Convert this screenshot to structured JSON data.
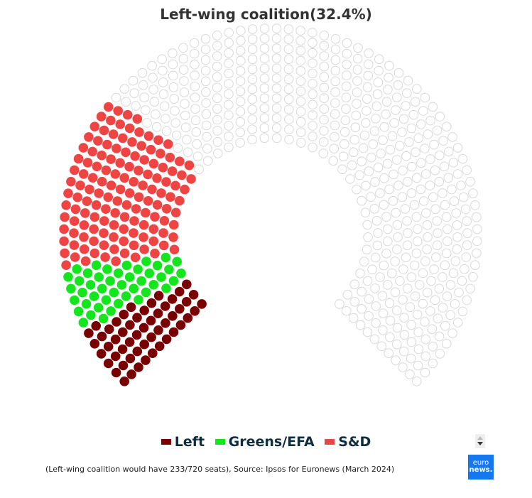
{
  "title": "Left-wing coalition(32.4%)",
  "chart_data": {
    "type": "parliament",
    "title": "Left-wing coalition(32.4%)",
    "total_seats": 720,
    "series": [
      {
        "name": "Left",
        "seats": 53,
        "color": "#780000"
      },
      {
        "name": "Greens/EFA",
        "seats": 45,
        "color": "#14e61e"
      },
      {
        "name": "S&D",
        "seats": 135,
        "color": "#ef4444"
      }
    ],
    "empty_seats": 487,
    "empty_color": "#ffffff",
    "empty_stroke": "#d8d8d8",
    "legend_position": "bottom"
  },
  "footer": "(Left-wing coalition would have 233/720 seats), Source: Ipsos for Euronews (March 2024)",
  "logo": {
    "line1": "euro",
    "line2": "news."
  }
}
